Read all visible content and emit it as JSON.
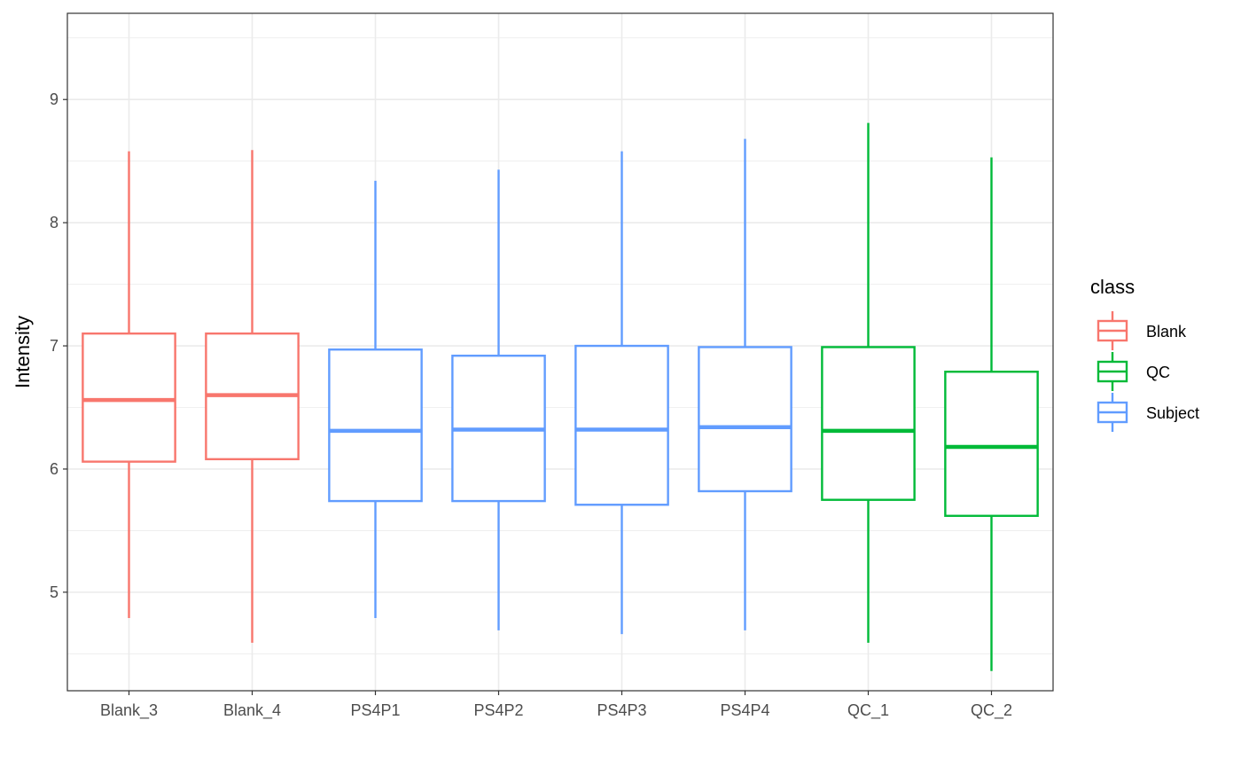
{
  "chart_data": {
    "type": "boxplot",
    "title": "",
    "xlabel": "",
    "ylabel": "Intensity",
    "ylim": [
      4.2,
      9.7
    ],
    "yticks": [
      5,
      6,
      7,
      8,
      9
    ],
    "grid": true,
    "legend": {
      "title": "class",
      "position": "right",
      "entries": [
        {
          "label": "Blank",
          "color": "#F8766D"
        },
        {
          "label": "QC",
          "color": "#00BA38"
        },
        {
          "label": "Subject",
          "color": "#619CFF"
        }
      ]
    },
    "categories": [
      "Blank_3",
      "Blank_4",
      "PS4P1",
      "PS4P2",
      "PS4P3",
      "PS4P4",
      "QC_1",
      "QC_2"
    ],
    "boxes": [
      {
        "category": "Blank_3",
        "class": "Blank",
        "min": 4.79,
        "q1": 6.06,
        "median": 6.56,
        "q3": 7.1,
        "max": 8.58
      },
      {
        "category": "Blank_4",
        "class": "Blank",
        "min": 4.59,
        "q1": 6.08,
        "median": 6.6,
        "q3": 7.1,
        "max": 8.59
      },
      {
        "category": "PS4P1",
        "class": "Subject",
        "min": 4.79,
        "q1": 5.74,
        "median": 6.31,
        "q3": 6.97,
        "max": 8.34
      },
      {
        "category": "PS4P2",
        "class": "Subject",
        "min": 4.69,
        "q1": 5.74,
        "median": 6.32,
        "q3": 6.92,
        "max": 8.43
      },
      {
        "category": "PS4P3",
        "class": "Subject",
        "min": 4.66,
        "q1": 5.71,
        "median": 6.32,
        "q3": 7.0,
        "max": 8.58
      },
      {
        "category": "PS4P4",
        "class": "Subject",
        "min": 4.69,
        "q1": 5.82,
        "median": 6.34,
        "q3": 6.99,
        "max": 8.68
      },
      {
        "category": "QC_1",
        "class": "QC",
        "min": 4.59,
        "q1": 5.75,
        "median": 6.31,
        "q3": 6.99,
        "max": 8.81
      },
      {
        "category": "QC_2",
        "class": "QC",
        "min": 4.36,
        "q1": 5.62,
        "median": 6.18,
        "q3": 6.79,
        "max": 8.53
      }
    ]
  }
}
